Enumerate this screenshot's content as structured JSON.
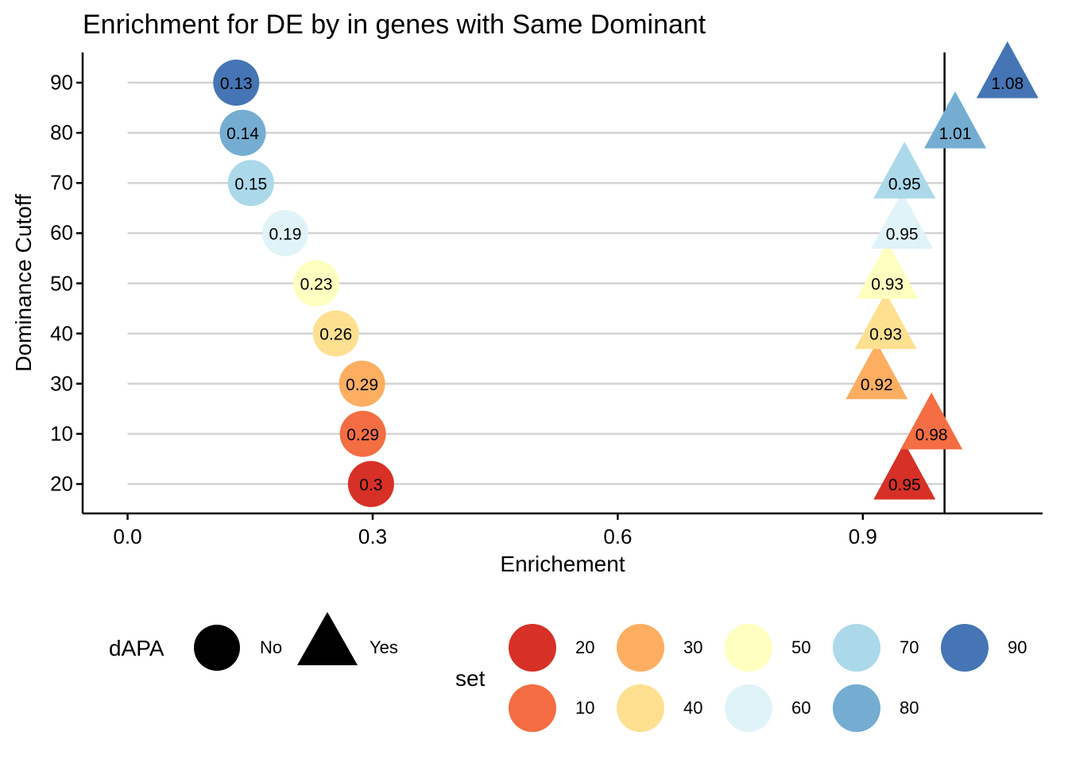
{
  "chart_data": {
    "type": "scatter",
    "title": "Enrichment for DE by in genes with Same Dominant",
    "xlabel": "Enrichement",
    "ylabel": "Dominance Cutoff",
    "xlim": [
      -0.055,
      1.12
    ],
    "x_ticks": [
      "0.0",
      "0.3",
      "0.6",
      "0.9"
    ],
    "x_tick_values": [
      0.0,
      0.3,
      0.6,
      0.9
    ],
    "y_categories": [
      "20",
      "10",
      "30",
      "40",
      "50",
      "60",
      "70",
      "80",
      "90"
    ],
    "reference_line_x": 1.0,
    "grid": "horizontal lines per category",
    "points": [
      {
        "y": "20",
        "x": 0.298,
        "label": "0.3",
        "set": "20",
        "dAPA": "No"
      },
      {
        "y": "10",
        "x": 0.288,
        "label": "0.29",
        "set": "10",
        "dAPA": "No"
      },
      {
        "y": "30",
        "x": 0.287,
        "label": "0.29",
        "set": "30",
        "dAPA": "No"
      },
      {
        "y": "40",
        "x": 0.255,
        "label": "0.26",
        "set": "40",
        "dAPA": "No"
      },
      {
        "y": "50",
        "x": 0.231,
        "label": "0.23",
        "set": "50",
        "dAPA": "No"
      },
      {
        "y": "60",
        "x": 0.193,
        "label": "0.19",
        "set": "60",
        "dAPA": "No"
      },
      {
        "y": "70",
        "x": 0.151,
        "label": "0.15",
        "set": "70",
        "dAPA": "No"
      },
      {
        "y": "80",
        "x": 0.141,
        "label": "0.14",
        "set": "80",
        "dAPA": "No"
      },
      {
        "y": "90",
        "x": 0.133,
        "label": "0.13",
        "set": "90",
        "dAPA": "No"
      },
      {
        "y": "20",
        "x": 0.951,
        "label": "0.95",
        "set": "20",
        "dAPA": "Yes"
      },
      {
        "y": "10",
        "x": 0.984,
        "label": "0.98",
        "set": "10",
        "dAPA": "Yes"
      },
      {
        "y": "30",
        "x": 0.917,
        "label": "0.92",
        "set": "30",
        "dAPA": "Yes"
      },
      {
        "y": "40",
        "x": 0.928,
        "label": "0.93",
        "set": "40",
        "dAPA": "Yes"
      },
      {
        "y": "50",
        "x": 0.93,
        "label": "0.93",
        "set": "50",
        "dAPA": "Yes"
      },
      {
        "y": "60",
        "x": 0.948,
        "label": "0.95",
        "set": "60",
        "dAPA": "Yes"
      },
      {
        "y": "70",
        "x": 0.951,
        "label": "0.95",
        "set": "70",
        "dAPA": "Yes"
      },
      {
        "y": "80",
        "x": 1.013,
        "label": "1.01",
        "set": "80",
        "dAPA": "Yes"
      },
      {
        "y": "90",
        "x": 1.077,
        "label": "1.08",
        "set": "90",
        "dAPA": "Yes"
      }
    ],
    "set_colors": {
      "10": "#F46D43",
      "20": "#D73027",
      "30": "#FDAE61",
      "40": "#FEE090",
      "50": "#FFFFBF",
      "60": "#E0F3F8",
      "70": "#ABD9E9",
      "80": "#74ADD1",
      "90": "#4575B4"
    },
    "legend": {
      "shape_title": "dAPA",
      "shape_items": [
        {
          "label": "No",
          "shape": "circle"
        },
        {
          "label": "Yes",
          "shape": "triangle"
        }
      ],
      "color_title": "set",
      "color_items": [
        "20",
        "10",
        "30",
        "40",
        "50",
        "60",
        "70",
        "80",
        "90"
      ],
      "placement": "bottom"
    }
  }
}
